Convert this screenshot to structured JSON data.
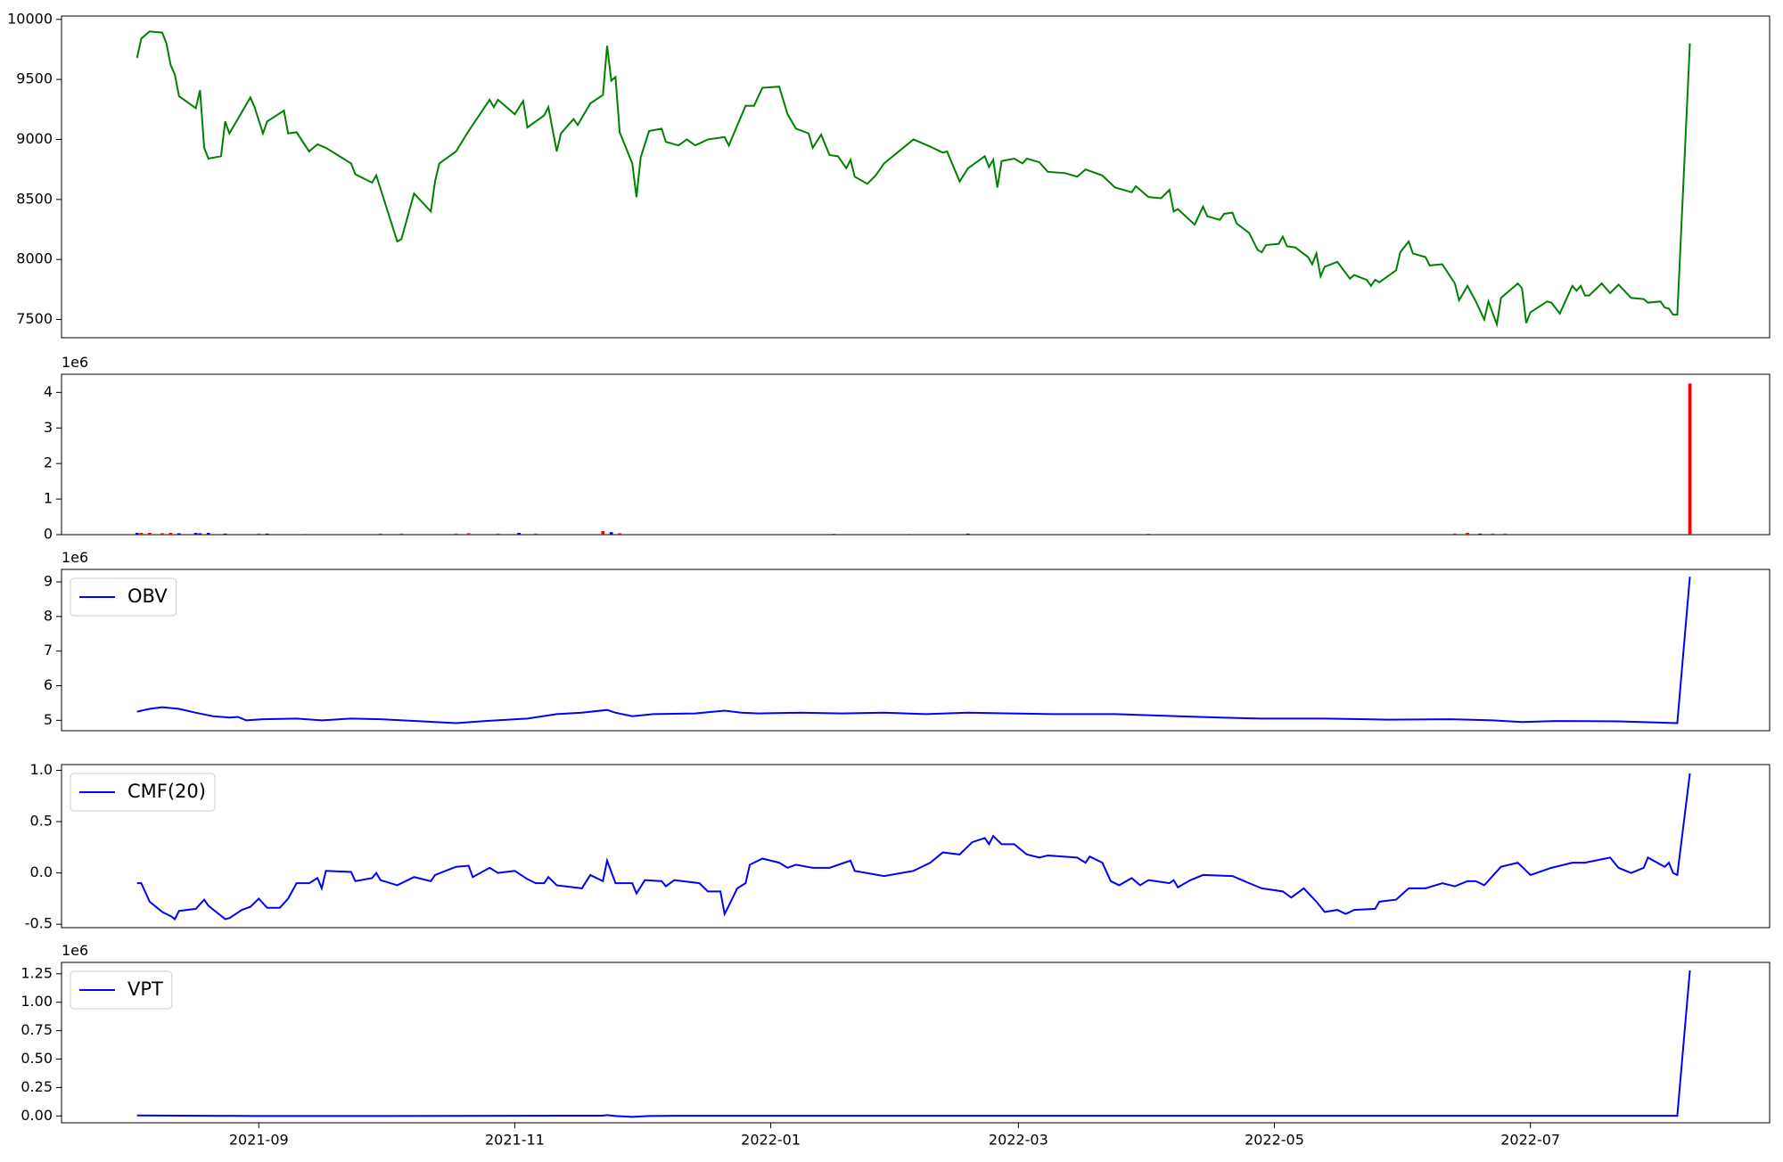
{
  "chart_data": [
    {
      "type": "line",
      "color": "green",
      "xlim": [
        18824,
        19231
      ],
      "ylim": [
        7348,
        10028
      ],
      "yticks": [
        7500,
        8000,
        8500,
        9000,
        9500,
        10000
      ],
      "x": [
        18842,
        18843,
        18845,
        18848,
        18849,
        18850,
        18851,
        18852,
        18856,
        18857,
        18858,
        18859,
        18862,
        18863,
        18864,
        18869,
        18870,
        18872,
        18873,
        18877,
        18878,
        18880,
        18883,
        18885,
        18887,
        18893,
        18894,
        18898,
        18899,
        18904,
        18905,
        18908,
        18912,
        18913,
        18914,
        18918,
        18921,
        18926,
        18927,
        18928,
        18932,
        18934,
        18935,
        18939,
        18940,
        18942,
        18943,
        18946,
        18947,
        18950,
        18953,
        18954,
        18955,
        18956,
        18957,
        18960,
        18961,
        18962,
        18964,
        18967,
        18968,
        18971,
        18973,
        18975,
        18978,
        18982,
        18983,
        18987,
        18989,
        18991,
        18995,
        18997,
        18999,
        19002,
        19003,
        19005,
        19007,
        19009,
        19011,
        19012,
        19013,
        19016,
        19018,
        19020,
        19027,
        19031,
        19034,
        19035,
        19038,
        19040,
        19044,
        19045,
        19046,
        19047,
        19048,
        19051,
        19053,
        19054,
        19057,
        19059,
        19063,
        19066,
        19068,
        19072,
        19075,
        19079,
        19080,
        19083,
        19086,
        19088,
        19089,
        19090,
        19094,
        19096,
        19097,
        19100,
        19101,
        19103,
        19104,
        19107,
        19109,
        19110,
        19111,
        19114,
        19115,
        19116,
        19118,
        19121,
        19122,
        19123,
        19124,
        19125,
        19128,
        19131,
        19132,
        19135,
        19136,
        19137,
        19138,
        19142,
        19143,
        19145,
        19146,
        19149,
        19150,
        19153,
        19156,
        19157,
        19159,
        19161,
        19163,
        19164,
        19166,
        19167,
        19171,
        19172,
        19173,
        19174,
        19178,
        19179,
        19181,
        19184,
        19185,
        19186,
        19187,
        19188,
        19191,
        19193,
        19195,
        19198,
        19201,
        19202,
        19205,
        19206,
        19207,
        19208,
        19209,
        19212
      ],
      "values": [
        9680,
        9840,
        9900,
        9890,
        9800,
        9620,
        9540,
        9360,
        9260,
        9410,
        8930,
        8840,
        8860,
        9150,
        9050,
        9350,
        9270,
        9050,
        9150,
        9240,
        9050,
        9060,
        8900,
        8960,
        8930,
        8800,
        8710,
        8640,
        8700,
        8150,
        8170,
        8550,
        8400,
        8650,
        8800,
        8900,
        9070,
        9330,
        9270,
        9330,
        9210,
        9320,
        9100,
        9200,
        9270,
        8900,
        9050,
        9170,
        9120,
        9300,
        9370,
        9780,
        9490,
        9520,
        9060,
        8800,
        8520,
        8850,
        9070,
        9090,
        8980,
        8950,
        9000,
        8950,
        9000,
        9020,
        8950,
        9280,
        9280,
        9430,
        9440,
        9210,
        9090,
        9050,
        8930,
        9040,
        8870,
        8860,
        8760,
        8830,
        8690,
        8630,
        8700,
        8800,
        9000,
        8940,
        8890,
        8900,
        8650,
        8760,
        8860,
        8770,
        8830,
        8600,
        8820,
        8840,
        8800,
        8840,
        8810,
        8730,
        8720,
        8690,
        8750,
        8700,
        8600,
        8560,
        8610,
        8520,
        8510,
        8580,
        8400,
        8420,
        8290,
        8440,
        8360,
        8330,
        8380,
        8390,
        8300,
        8220,
        8080,
        8060,
        8120,
        8130,
        8190,
        8110,
        8100,
        8020,
        7960,
        8050,
        7860,
        7940,
        7980,
        7840,
        7870,
        7830,
        7780,
        7830,
        7810,
        7910,
        8060,
        8150,
        8050,
        8020,
        7950,
        7960,
        7800,
        7660,
        7780,
        7650,
        7500,
        7650,
        7460,
        7680,
        7800,
        7760,
        7470,
        7560,
        7650,
        7640,
        7550,
        7780,
        7740,
        7780,
        7700,
        7700,
        7800,
        7720,
        7790,
        7680,
        7670,
        7640,
        7650,
        7600,
        7590,
        7540,
        7540,
        9800
      ]
    },
    {
      "type": "bar",
      "offset_label": "1e6",
      "xlim": [
        18824,
        19231
      ],
      "ylim": [
        0,
        4.51
      ],
      "yticks": [
        0,
        1,
        2,
        3,
        4
      ],
      "x": [
        18842,
        18843,
        18845,
        18848,
        18850,
        18852,
        18856,
        18857,
        18859,
        18863,
        18871,
        18873,
        18882,
        18900,
        18905,
        18918,
        18921,
        18928,
        18933,
        18937,
        18953,
        18955,
        18957,
        19008,
        19026,
        19040,
        19083,
        19156,
        19159,
        19162,
        19165,
        19168,
        19212
      ],
      "values": [
        0.05,
        0.05,
        0.05,
        0.04,
        0.05,
        0.04,
        0.05,
        0.04,
        0.05,
        0.03,
        0.03,
        0.03,
        0.02,
        0.03,
        0.03,
        0.03,
        0.04,
        0.03,
        0.05,
        0.03,
        0.1,
        0.07,
        0.04,
        0.02,
        0.02,
        0.03,
        0.02,
        0.03,
        0.05,
        0.03,
        0.03,
        0.03,
        4.25
      ],
      "colors": [
        "blue",
        "red",
        "red",
        "red",
        "red",
        "blue",
        "blue",
        "blue",
        "blue",
        "blue",
        "red",
        "blue",
        "red",
        "red",
        "red",
        "red",
        "red",
        "red",
        "blue",
        "red",
        "red",
        "blue",
        "red",
        "blue",
        "red",
        "blue",
        "blue",
        "red",
        "red",
        "blue",
        "red",
        "red",
        "red"
      ]
    },
    {
      "type": "line",
      "offset_label": "1e6",
      "legend": "upper left",
      "xlim": [
        18824,
        19231
      ],
      "ylim": [
        4.7,
        9.36
      ],
      "yticks": [
        5,
        6,
        7,
        8,
        9
      ],
      "x": [
        18842,
        18845,
        18848,
        18852,
        18856,
        18860,
        18864,
        18866,
        18868,
        18872,
        18880,
        18886,
        18893,
        18900,
        18910,
        18918,
        18925,
        18935,
        18942,
        18948,
        18954,
        18956,
        18960,
        18965,
        18975,
        18982,
        18986,
        18990,
        19000,
        19010,
        19020,
        19030,
        19040,
        19050,
        19060,
        19075,
        19090,
        19100,
        19110,
        19125,
        19140,
        19155,
        19165,
        19172,
        19180,
        19195,
        19209,
        19212
      ],
      "series": [
        {
          "name": "OBV",
          "color": "blue",
          "values": [
            5.25,
            5.33,
            5.38,
            5.33,
            5.22,
            5.12,
            5.08,
            5.1,
            5.0,
            5.03,
            5.05,
            5.0,
            5.05,
            5.03,
            4.97,
            4.92,
            4.98,
            5.05,
            5.18,
            5.22,
            5.3,
            5.22,
            5.12,
            5.18,
            5.2,
            5.28,
            5.22,
            5.2,
            5.22,
            5.2,
            5.22,
            5.18,
            5.22,
            5.2,
            5.18,
            5.18,
            5.12,
            5.08,
            5.05,
            5.05,
            5.02,
            5.03,
            5.0,
            4.95,
            4.98,
            4.97,
            4.92,
            9.15
          ]
        }
      ]
    },
    {
      "type": "line",
      "legend": "upper left",
      "xlim": [
        18824,
        19231
      ],
      "ylim": [
        -0.533,
        1.056
      ],
      "yticks": [
        {
          "value": -0.5,
          "label": "-0.5"
        },
        {
          "value": 0,
          "label": "0.0"
        },
        {
          "value": 0.5,
          "label": "0.5"
        },
        {
          "value": 1,
          "label": "1.0"
        }
      ],
      "x": [
        18842,
        18843,
        18845,
        18848,
        18850,
        18851,
        18852,
        18856,
        18858,
        18859,
        18863,
        18864,
        18867,
        18869,
        18871,
        18873,
        18876,
        18878,
        18880,
        18883,
        18885,
        18886,
        18887,
        18893,
        18894,
        18898,
        18899,
        18900,
        18904,
        18908,
        18912,
        18913,
        18918,
        18921,
        18922,
        18926,
        18928,
        18932,
        18935,
        18937,
        18939,
        18940,
        18942,
        18948,
        18950,
        18953,
        18954,
        18956,
        18960,
        18961,
        18963,
        18967,
        18968,
        18970,
        18976,
        18978,
        18981,
        18982,
        18983,
        18985,
        18987,
        18988,
        18991,
        18995,
        18997,
        18999,
        19003,
        19007,
        19012,
        19013,
        19020,
        19027,
        19031,
        19034,
        19038,
        19041,
        19044,
        19045,
        19046,
        19048,
        19051,
        19054,
        19057,
        19059,
        19066,
        19068,
        19069,
        19072,
        19074,
        19076,
        19079,
        19081,
        19083,
        19088,
        19089,
        19090,
        19093,
        19096,
        19103,
        19107,
        19110,
        19115,
        19117,
        19120,
        19123,
        19125,
        19128,
        19130,
        19132,
        19137,
        19138,
        19142,
        19145,
        19149,
        19153,
        19156,
        19159,
        19161,
        19163,
        19167,
        19171,
        19172,
        19174,
        19179,
        19184,
        19187,
        19193,
        19195,
        19198,
        19201,
        19202,
        19206,
        19207,
        19208,
        19209,
        19212
      ],
      "series": [
        {
          "name": "CMF(20)",
          "color": "blue",
          "values": [
            -0.1,
            -0.1,
            -0.28,
            -0.38,
            -0.42,
            -0.45,
            -0.37,
            -0.35,
            -0.26,
            -0.32,
            -0.45,
            -0.44,
            -0.36,
            -0.33,
            -0.25,
            -0.34,
            -0.34,
            -0.25,
            -0.1,
            -0.1,
            -0.05,
            -0.15,
            0.02,
            0.01,
            -0.08,
            -0.05,
            0.0,
            -0.07,
            -0.12,
            -0.04,
            -0.08,
            -0.02,
            0.06,
            0.07,
            -0.04,
            0.05,
            0.0,
            0.02,
            -0.06,
            -0.1,
            -0.1,
            -0.04,
            -0.12,
            -0.15,
            -0.02,
            -0.08,
            0.12,
            -0.1,
            -0.1,
            -0.2,
            -0.07,
            -0.08,
            -0.13,
            -0.07,
            -0.1,
            -0.18,
            -0.18,
            -0.4,
            -0.32,
            -0.15,
            -0.1,
            0.08,
            0.14,
            0.1,
            0.05,
            0.08,
            0.05,
            0.05,
            0.12,
            0.02,
            -0.03,
            0.02,
            0.1,
            0.2,
            0.18,
            0.3,
            0.34,
            0.28,
            0.36,
            0.28,
            0.28,
            0.18,
            0.15,
            0.17,
            0.15,
            0.1,
            0.16,
            0.1,
            -0.08,
            -0.12,
            -0.05,
            -0.12,
            -0.07,
            -0.1,
            -0.07,
            -0.14,
            -0.07,
            -0.02,
            -0.03,
            -0.1,
            -0.15,
            -0.18,
            -0.24,
            -0.15,
            -0.28,
            -0.38,
            -0.36,
            -0.4,
            -0.36,
            -0.35,
            -0.28,
            -0.26,
            -0.15,
            -0.15,
            -0.1,
            -0.13,
            -0.08,
            -0.08,
            -0.12,
            0.06,
            0.1,
            0.06,
            -0.02,
            0.05,
            0.1,
            0.1,
            0.15,
            0.05,
            0.0,
            0.05,
            0.15,
            0.06,
            0.1,
            0.0,
            -0.02,
            0.97
          ]
        }
      ]
    },
    {
      "type": "line",
      "offset_label": "1e6",
      "legend": "upper left",
      "xlim": [
        18824,
        19231
      ],
      "ylim": [
        -0.06,
        1.35
      ],
      "yticks": [
        {
          "value": 0,
          "label": "0.00"
        },
        {
          "value": 0.25,
          "label": "0.25"
        },
        {
          "value": 0.5,
          "label": "0.50"
        },
        {
          "value": 0.75,
          "label": "0.75"
        },
        {
          "value": 1,
          "label": "1.00"
        },
        {
          "value": 1.25,
          "label": "1.25"
        }
      ],
      "xticks": [
        {
          "value": 18871,
          "label": "2021-09"
        },
        {
          "value": 18932,
          "label": "2021-11"
        },
        {
          "value": 18993,
          "label": "2022-01"
        },
        {
          "value": 19052,
          "label": "2022-03"
        },
        {
          "value": 19113,
          "label": "2022-05"
        },
        {
          "value": 19174,
          "label": "2022-07"
        }
      ],
      "x": [
        18842,
        18870,
        18900,
        18953,
        18954,
        18956,
        18960,
        18964,
        18970,
        19050,
        19150,
        19209,
        19212
      ],
      "series": [
        {
          "name": "VPT",
          "color": "blue",
          "values": [
            0.005,
            0.0,
            0.0,
            0.003,
            0.008,
            0.0,
            -0.008,
            0.0,
            0.002,
            0.002,
            0.002,
            0.002,
            1.28
          ]
        }
      ]
    }
  ]
}
